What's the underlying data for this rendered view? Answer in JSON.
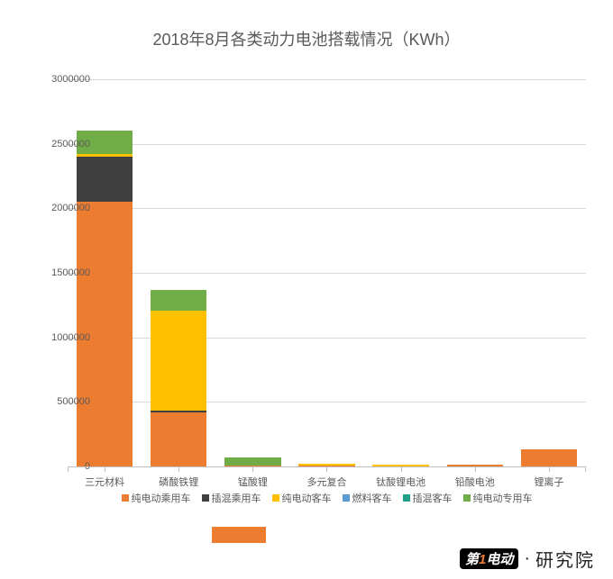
{
  "chart": {
    "type": "stacked-bar",
    "title": "2018年8月各类动力电池搭载情况（KWh）",
    "title_fontsize": 18,
    "title_color": "#595959",
    "background_color": "#ffffff",
    "grid_color": "#d9d9d9",
    "axis_color": "#bfbfbf",
    "tick_fontsize": 11,
    "tick_color": "#595959",
    "ylim": [
      0,
      3000000
    ],
    "ytick_step": 500000,
    "yticks": [
      0,
      500000,
      1000000,
      1500000,
      2000000,
      2500000,
      3000000
    ],
    "categories": [
      "三元材料",
      "磷酸铁锂",
      "锰酸锂",
      "多元复合",
      "钛酸锂电池",
      "铅酸电池",
      "锂离子"
    ],
    "series": [
      {
        "name": "纯电动乘用车",
        "color": "#ec7c30"
      },
      {
        "name": "插混乘用车",
        "color": "#404040"
      },
      {
        "name": "纯电动客车",
        "color": "#ffc000"
      },
      {
        "name": "燃料客车",
        "color": "#5b9bd5"
      },
      {
        "name": "插混客车",
        "color": "#1f9e89"
      },
      {
        "name": "纯电动专用车",
        "color": "#70ad47"
      }
    ],
    "values": [
      [
        2050000,
        350000,
        20000,
        0,
        0,
        180000
      ],
      [
        420000,
        10000,
        780000,
        0,
        0,
        160000
      ],
      [
        10000,
        0,
        0,
        0,
        0,
        60000
      ],
      [
        5000,
        0,
        15000,
        0,
        0,
        0
      ],
      [
        0,
        0,
        15000,
        0,
        0,
        0
      ],
      [
        15000,
        0,
        0,
        0,
        0,
        0
      ],
      [
        130000,
        0,
        0,
        0,
        0,
        0
      ]
    ],
    "bar_width": 0.76
  },
  "brand": {
    "logo_prefix": "第",
    "logo_accent": "1",
    "logo_suffix": "电动",
    "text": "研究院",
    "footer_bar_color": "#ec7c30"
  }
}
